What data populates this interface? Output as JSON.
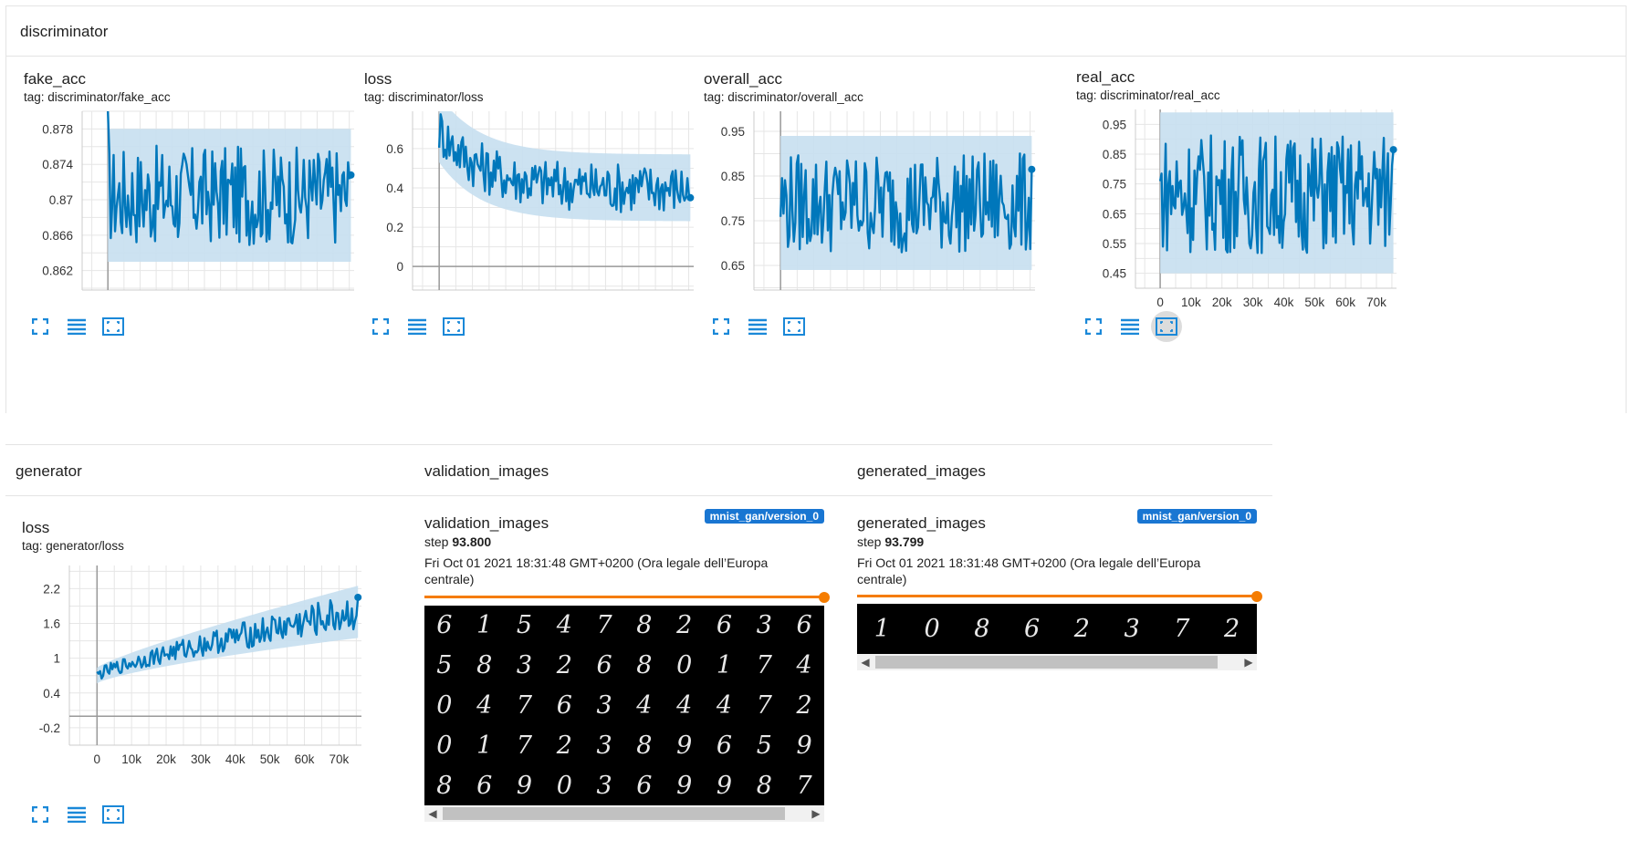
{
  "sections": {
    "discriminator": "discriminator",
    "generator": "generator",
    "validation_images": "validation_images",
    "generated_images": "generated_images"
  },
  "colors": {
    "line": "#0077bb",
    "band": "#c6dff0",
    "grid": "#e6e6e6",
    "slider": "#f57c00",
    "badge": "#1976d2"
  },
  "toolbar_icons": [
    "fullscreen-icon",
    "data-table-icon",
    "fit-domain-icon"
  ],
  "cards": [
    {
      "id": "fake_acc",
      "title": "fake_acc",
      "tag": "tag: discriminator/fake_acc"
    },
    {
      "id": "d_loss",
      "title": "loss",
      "tag": "tag: discriminator/loss"
    },
    {
      "id": "overall_acc",
      "title": "overall_acc",
      "tag": "tag: discriminator/overall_acc"
    },
    {
      "id": "real_acc",
      "title": "real_acc",
      "tag": "tag: discriminator/real_acc"
    },
    {
      "id": "g_loss",
      "title": "loss",
      "tag": "tag: generator/loss"
    }
  ],
  "chart_data": [
    {
      "id": "fake_acc",
      "type": "line",
      "title": "fake_acc",
      "y_ticks": [
        "0.878",
        "0.874",
        "0.87",
        "0.866",
        "0.862"
      ],
      "y_tick_values": [
        0.878,
        0.874,
        0.87,
        0.866,
        0.862
      ],
      "ylim": [
        0.8598,
        0.88
      ],
      "xlim": [
        -8000,
        76500
      ],
      "x_ticks": [],
      "series": [
        {
          "x_range": [
            0,
            75500
          ],
          "y_mean": 0.8705,
          "y_spread": 0.0075,
          "y_end": 0.8728,
          "start_high": 0.88
        }
      ]
    },
    {
      "id": "d_loss",
      "type": "line",
      "title": "loss",
      "y_ticks": [
        "0.6",
        "0.4",
        "0.2",
        "0"
      ],
      "y_tick_values": [
        0.6,
        0.4,
        0.2,
        0
      ],
      "ylim": [
        -0.12,
        0.79
      ],
      "xlim": [
        -8000,
        76500
      ],
      "x_ticks": [],
      "series": [
        {
          "x_range": [
            0,
            75500
          ],
          "y_start": 0.7,
          "y_mean": 0.4,
          "y_spread": 0.17,
          "y_end": 0.35
        }
      ]
    },
    {
      "id": "overall_acc",
      "type": "line",
      "title": "overall_acc",
      "y_ticks": [
        "0.95",
        "0.85",
        "0.75",
        "0.65"
      ],
      "y_tick_values": [
        0.95,
        0.85,
        0.75,
        0.65
      ],
      "ylim": [
        0.595,
        0.995
      ],
      "xlim": [
        -8000,
        76500
      ],
      "x_ticks": [],
      "series": [
        {
          "x_range": [
            0,
            75500
          ],
          "y_mean": 0.79,
          "y_spread": 0.15,
          "y_end": 0.865
        }
      ]
    },
    {
      "id": "real_acc",
      "type": "line",
      "title": "real_acc",
      "y_ticks": [
        "0.95",
        "0.85",
        "0.75",
        "0.65",
        "0.55",
        "0.45"
      ],
      "y_tick_values": [
        0.95,
        0.85,
        0.75,
        0.65,
        0.55,
        0.45
      ],
      "ylim": [
        0.4,
        1.0
      ],
      "xlim": [
        -8000,
        76500
      ],
      "x_ticks": [
        "0",
        "10k",
        "20k",
        "30k",
        "40k",
        "50k",
        "60k",
        "70k"
      ],
      "x_tick_values": [
        0,
        10000,
        20000,
        30000,
        40000,
        50000,
        60000,
        70000
      ],
      "series": [
        {
          "x_range": [
            0,
            75500
          ],
          "y_mean": 0.72,
          "y_spread": 0.27,
          "y_end": 0.865
        }
      ]
    },
    {
      "id": "g_loss",
      "type": "line",
      "title": "loss",
      "y_ticks": [
        "2.2",
        "1.6",
        "1",
        "0.4",
        "-0.2"
      ],
      "y_tick_values": [
        2.2,
        1.6,
        1,
        0.4,
        -0.2
      ],
      "ylim": [
        -0.5,
        2.6
      ],
      "xlim": [
        -8000,
        76500
      ],
      "x_ticks": [
        "0",
        "10k",
        "20k",
        "30k",
        "40k",
        "50k",
        "60k",
        "70k"
      ],
      "x_tick_values": [
        0,
        10000,
        20000,
        30000,
        40000,
        50000,
        60000,
        70000
      ],
      "series": [
        {
          "x_range": [
            0,
            75500
          ],
          "y_start": 0.7,
          "y_end_mean": 1.8,
          "y_spread": 0.45,
          "y_end": 2.05
        }
      ]
    }
  ],
  "validation_card": {
    "title": "validation_images",
    "run": "mnist_gan/version_0",
    "step_label": "step",
    "step_value": "93.800",
    "timestamp": "Fri Oct 01 2021 18:31:48 GMT+0200 (Ora legale dell’Europa centrale)",
    "digits": [
      "6",
      "1",
      "5",
      "4",
      "7",
      "8",
      "2",
      "6",
      "3",
      "6",
      "5",
      "8",
      "3",
      "2",
      "6",
      "8",
      "0",
      "1",
      "7",
      "4",
      "0",
      "4",
      "7",
      "6",
      "3",
      "4",
      "4",
      "4",
      "7",
      "2",
      "0",
      "1",
      "7",
      "2",
      "3",
      "8",
      "9",
      "6",
      "5",
      "9",
      "8",
      "6",
      "9",
      "0",
      "3",
      "6",
      "9",
      "9",
      "8",
      "7"
    ]
  },
  "generated_card": {
    "title": "generated_images",
    "run": "mnist_gan/version_0",
    "step_label": "step",
    "step_value": "93.799",
    "timestamp": "Fri Oct 01 2021 18:31:48 GMT+0200 (Ora legale dell’Europa centrale)",
    "digits": [
      "1",
      "0",
      "8",
      "6",
      "2",
      "3",
      "7",
      "2"
    ]
  }
}
